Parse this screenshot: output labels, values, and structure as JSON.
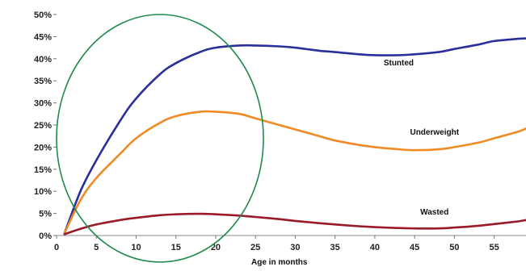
{
  "chart_data": {
    "type": "line",
    "title": "",
    "xlabel": "Age in months",
    "ylabel": "",
    "xlim": [
      0,
      59
    ],
    "ylim": [
      0,
      50
    ],
    "x_ticks": [
      0,
      5,
      10,
      15,
      20,
      25,
      30,
      35,
      40,
      45,
      50,
      55
    ],
    "x_tick_labels": [
      "0",
      "5",
      "10",
      "15",
      "20",
      "25",
      "30",
      "35",
      "40",
      "45",
      "50",
      "55"
    ],
    "y_ticks": [
      0,
      5,
      10,
      15,
      20,
      25,
      30,
      35,
      40,
      45,
      50
    ],
    "y_tick_labels": [
      "0%",
      "5%",
      "10%",
      "15%",
      "20%",
      "25%",
      "30%",
      "35%",
      "40%",
      "45%",
      "50%"
    ],
    "grid": false,
    "legend": "none",
    "series": [
      {
        "name": "Stunted",
        "color": "#2a2f9c",
        "x": [
          1,
          3,
          5,
          8,
          10,
          13,
          15,
          18,
          20,
          23,
          25,
          28,
          30,
          33,
          35,
          38,
          40,
          43,
          45,
          48,
          50,
          53,
          55,
          58,
          59
        ],
        "y": [
          0.5,
          10,
          17,
          26,
          31,
          36.5,
          39,
          41.5,
          42.5,
          43,
          43,
          42.8,
          42.5,
          41.8,
          41.5,
          41,
          40.8,
          40.8,
          41,
          41.5,
          42.2,
          43.2,
          44,
          44.5,
          44.6
        ]
      },
      {
        "name": "Underweight",
        "color": "#f08a24",
        "x": [
          1,
          3,
          5,
          8,
          10,
          13,
          15,
          18,
          20,
          23,
          25,
          28,
          30,
          33,
          35,
          38,
          40,
          43,
          45,
          48,
          50,
          53,
          55,
          58,
          59
        ],
        "y": [
          0.5,
          8,
          13,
          18.5,
          22,
          25.5,
          27,
          28,
          28,
          27.5,
          26.5,
          25,
          24,
          22.5,
          21.5,
          20.5,
          20,
          19.5,
          19.3,
          19.5,
          20,
          21,
          22,
          23.5,
          24.2
        ]
      },
      {
        "name": "Wasted",
        "color": "#9b1a2a",
        "x": [
          1,
          3,
          5,
          8,
          10,
          13,
          15,
          18,
          20,
          23,
          25,
          28,
          30,
          33,
          35,
          38,
          40,
          43,
          45,
          48,
          50,
          53,
          55,
          58,
          59
        ],
        "y": [
          0.3,
          1.5,
          2.5,
          3.5,
          4,
          4.6,
          4.8,
          4.9,
          4.8,
          4.5,
          4.2,
          3.7,
          3.3,
          2.8,
          2.5,
          2.1,
          1.9,
          1.7,
          1.6,
          1.6,
          1.8,
          2.2,
          2.6,
          3.2,
          3.5
        ]
      }
    ],
    "annotation": {
      "shape": "ellipse",
      "color": "#1f8a4c",
      "center_x": 13,
      "center_y": 22,
      "radius_x": 13,
      "radius_y": 28
    }
  }
}
